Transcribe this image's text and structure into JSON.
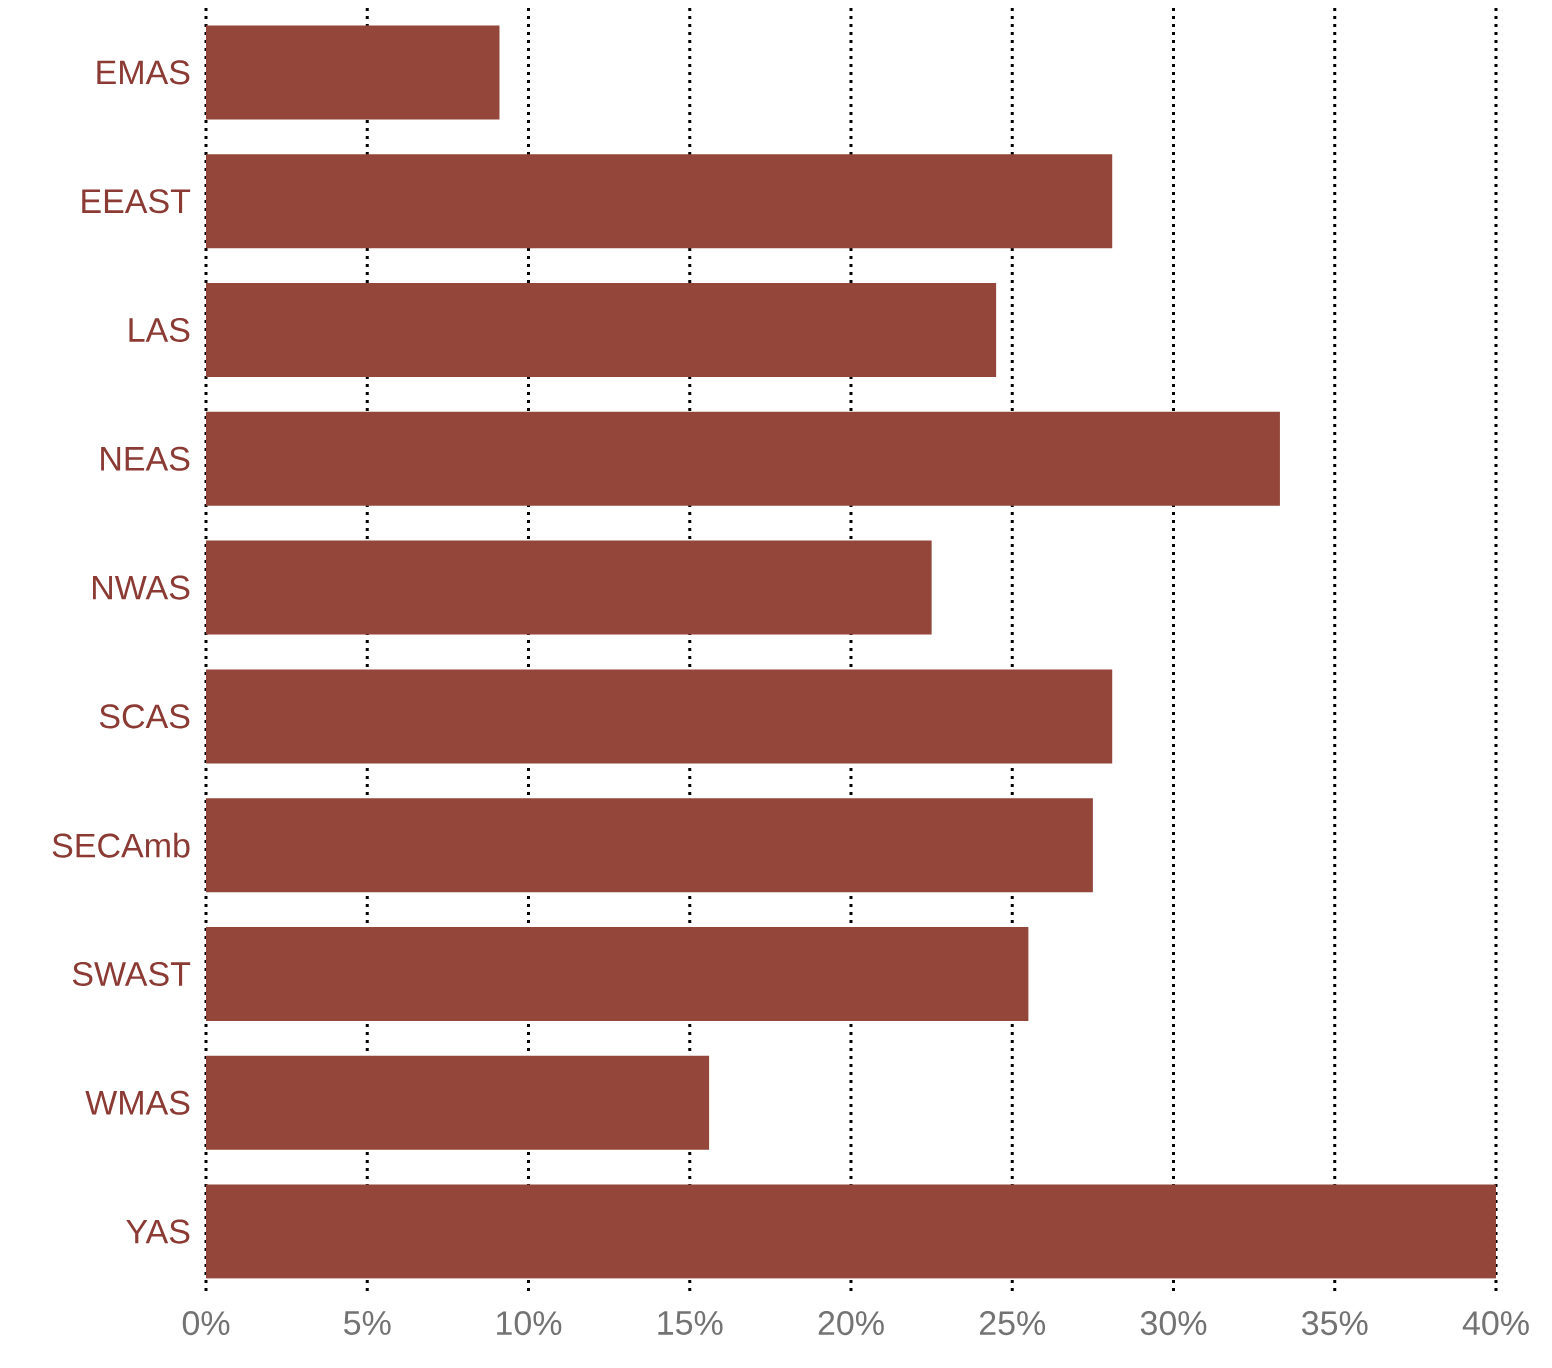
{
  "chart_data": {
    "type": "bar",
    "orientation": "horizontal",
    "categories": [
      "EMAS",
      "EEAST",
      "LAS",
      "NEAS",
      "NWAS",
      "SCAS",
      "SECAmb",
      "SWAST",
      "WMAS",
      "YAS"
    ],
    "values": [
      9.1,
      28.1,
      24.5,
      33.3,
      22.5,
      28.1,
      27.5,
      25.5,
      15.6,
      40.0
    ],
    "color": "#934639",
    "xlim": [
      0,
      40
    ],
    "xticks": [
      {
        "value": 0,
        "label": "0%"
      },
      {
        "value": 5,
        "label": "5%"
      },
      {
        "value": 10,
        "label": "10%"
      },
      {
        "value": 15,
        "label": "15%"
      },
      {
        "value": 20,
        "label": "20%"
      },
      {
        "value": 25,
        "label": "25%"
      },
      {
        "value": 30,
        "label": "30%"
      },
      {
        "value": 35,
        "label": "35%"
      },
      {
        "value": 40,
        "label": "40%"
      }
    ],
    "grid": "x"
  }
}
